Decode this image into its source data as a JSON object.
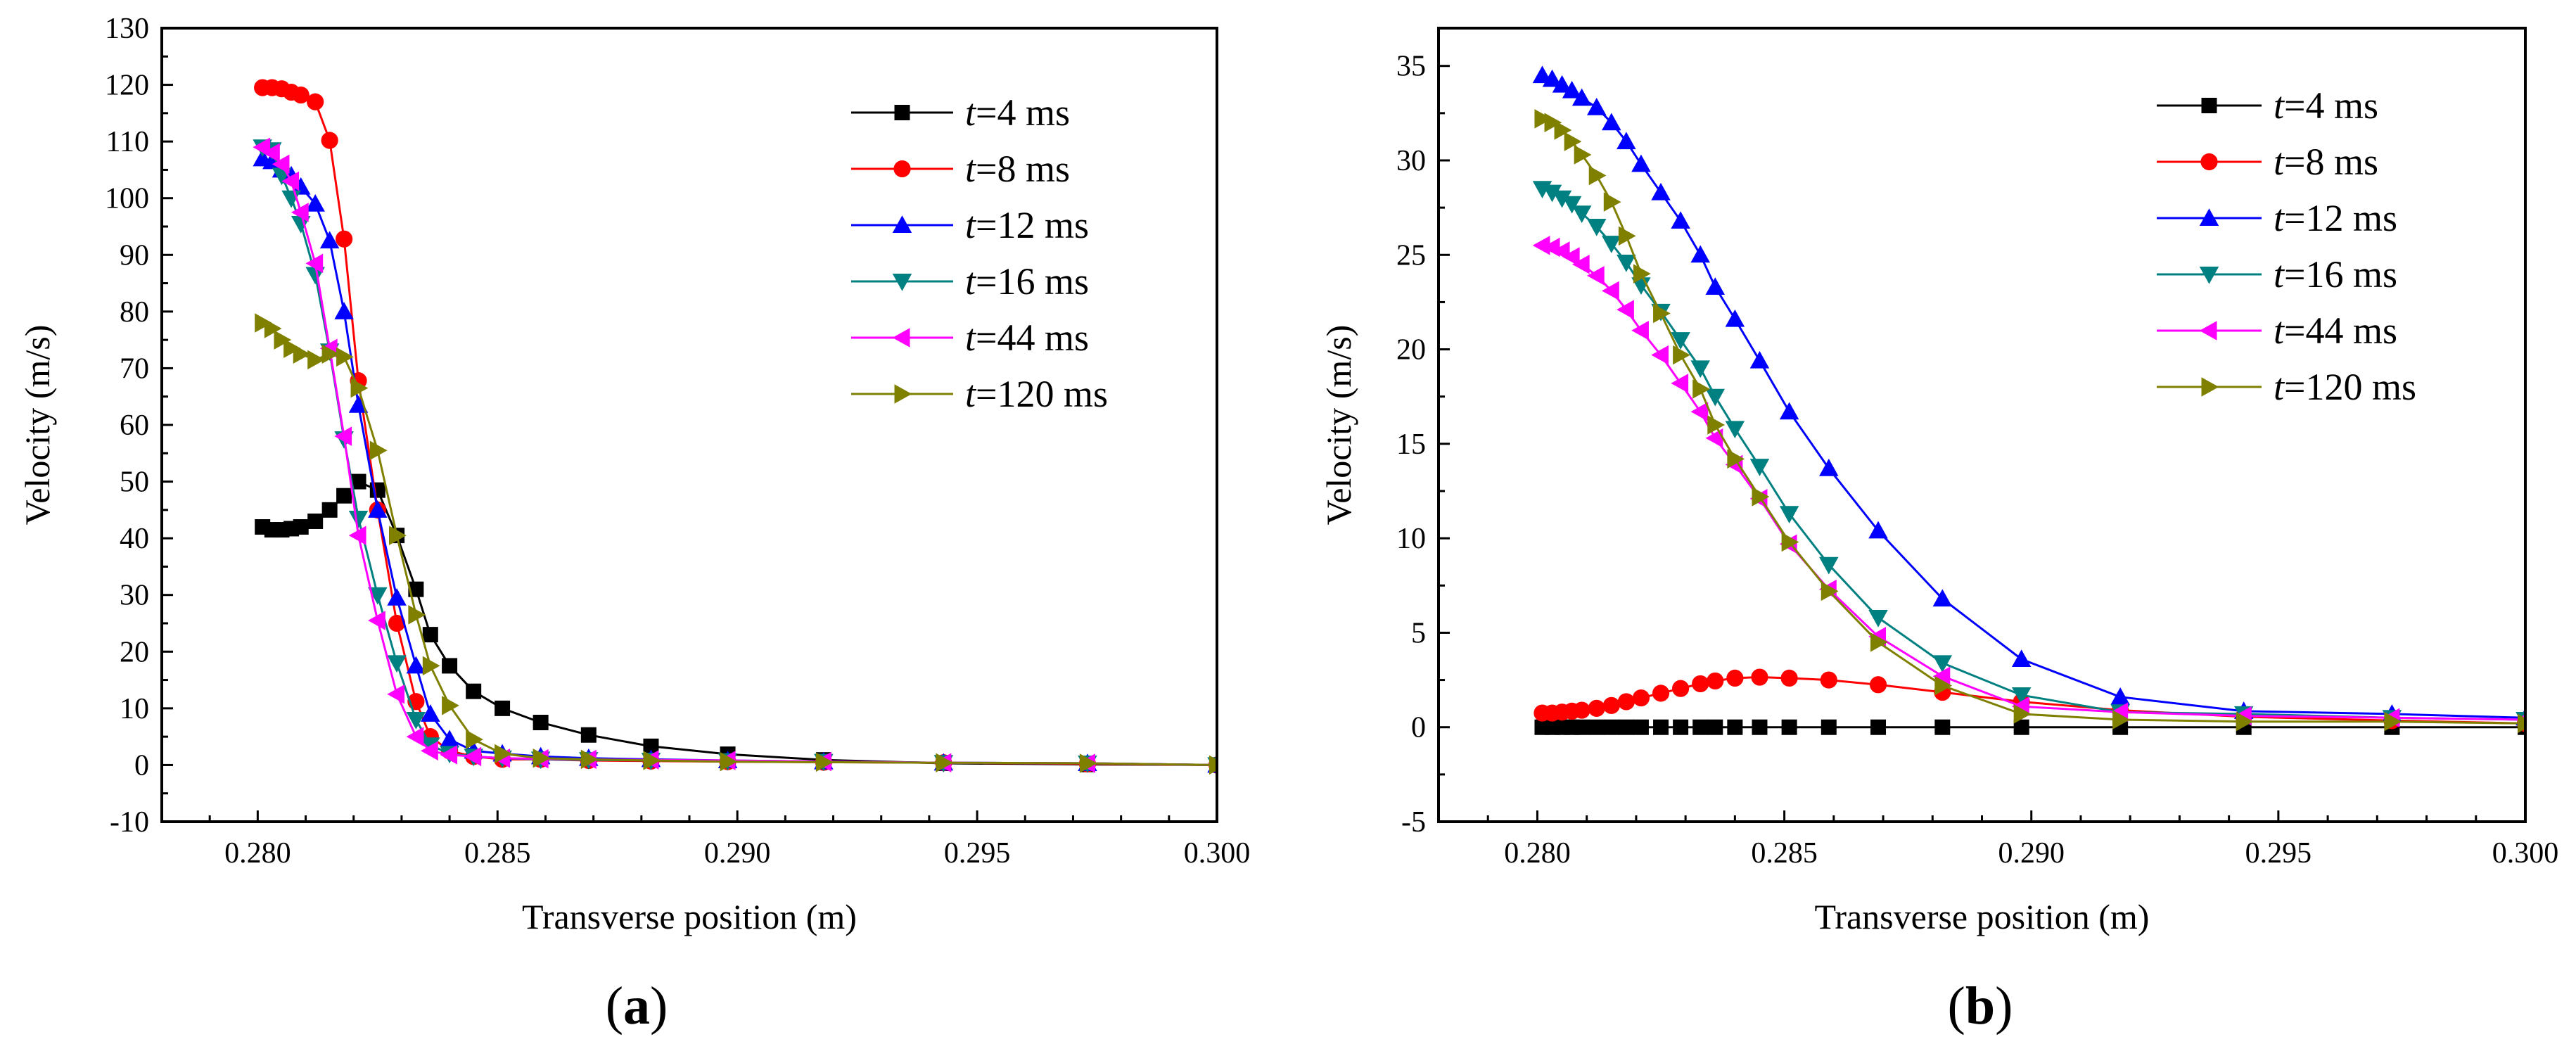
{
  "chart_data": [
    {
      "type": "line",
      "panel_label": "(a)",
      "panel_letter": "a",
      "xlabel": "Transverse position  (m)",
      "ylabel": "Velocity  (m/s)",
      "xlim": [
        0.278,
        0.3
      ],
      "ylim": [
        -10,
        130
      ],
      "xticks": [
        0.28,
        0.285,
        0.29,
        0.295,
        0.3
      ],
      "xtick_labels": [
        "0.280",
        "0.285",
        "0.290",
        "0.295",
        "0.300"
      ],
      "yticks": [
        -10,
        0,
        10,
        20,
        30,
        40,
        50,
        60,
        70,
        80,
        90,
        100,
        110,
        120,
        130
      ],
      "ytick_labels": [
        "-10",
        "0",
        "10",
        "20",
        "30",
        "40",
        "50",
        "60",
        "70",
        "80",
        "90",
        "100",
        "110",
        "120",
        "130"
      ],
      "legend_position": "top-right",
      "series": [
        {
          "name": "t=4 ms",
          "t_symbol": "t",
          "t_value": "=4 ms",
          "color": "#000000",
          "marker": "square",
          "x": [
            0.2801,
            0.2803,
            0.2805,
            0.2807,
            0.2809,
            0.2812,
            0.2815,
            0.2818,
            0.2821,
            0.2825,
            0.2829,
            0.2833,
            0.2836,
            0.284,
            0.2845,
            0.2851,
            0.2859,
            0.2869,
            0.2882,
            0.2898,
            0.2918,
            0.2943,
            0.2973,
            0.3
          ],
          "y": [
            42,
            41.5,
            41.5,
            41.7,
            42,
            43,
            45,
            47.5,
            50,
            48.5,
            40.5,
            31,
            23,
            17.5,
            13,
            10,
            7.5,
            5.3,
            3.3,
            1.9,
            0.9,
            0.3,
            0.1,
            0
          ]
        },
        {
          "name": "t=8 ms",
          "t_symbol": "t",
          "t_value": "=8 ms",
          "color": "#ff0000",
          "marker": "circle",
          "x": [
            0.2801,
            0.2803,
            0.2805,
            0.2807,
            0.2809,
            0.2812,
            0.2815,
            0.2818,
            0.2821,
            0.2825,
            0.2829,
            0.2833,
            0.2836,
            0.284,
            0.2845,
            0.2851,
            0.2859,
            0.2869,
            0.2882,
            0.2898,
            0.2918,
            0.2943,
            0.2973,
            0.3
          ],
          "y": [
            119.5,
            119.5,
            119.3,
            118.7,
            118.2,
            117,
            110.2,
            92.8,
            67.8,
            45,
            25,
            11.2,
            5,
            2.5,
            1.5,
            1,
            1,
            0.8,
            0.7,
            0.6,
            0.5,
            0.4,
            0.2,
            0
          ]
        },
        {
          "name": "t=12 ms",
          "t_symbol": "t",
          "t_value": "=12 ms",
          "color": "#0000ff",
          "marker": "triangle-up",
          "x": [
            0.2801,
            0.2803,
            0.2805,
            0.2807,
            0.2809,
            0.2812,
            0.2815,
            0.2818,
            0.2821,
            0.2825,
            0.2829,
            0.2833,
            0.2836,
            0.284,
            0.2845,
            0.2851,
            0.2859,
            0.2869,
            0.2882,
            0.2898,
            0.2918,
            0.2943,
            0.2973,
            0.3
          ],
          "y": [
            107,
            106.5,
            105,
            104,
            102,
            99,
            92.5,
            80,
            63.5,
            45,
            29.5,
            17.5,
            9,
            4.5,
            2.5,
            2,
            1.5,
            1.2,
            1,
            0.8,
            0.6,
            0.4,
            0.3,
            0
          ]
        },
        {
          "name": "t=16 ms",
          "t_symbol": "t",
          "t_value": "=16 ms",
          "color": "#008080",
          "marker": "triangle-down",
          "x": [
            0.2801,
            0.2803,
            0.2805,
            0.2807,
            0.2809,
            0.2812,
            0.2815,
            0.2818,
            0.2821,
            0.2825,
            0.2829,
            0.2833,
            0.2836,
            0.284,
            0.2845,
            0.2851,
            0.2859,
            0.2869,
            0.2882,
            0.2898,
            0.2918,
            0.2943,
            0.2973,
            0.3
          ],
          "y": [
            109,
            108.5,
            104,
            100,
            95.5,
            86.5,
            73,
            57.5,
            43.5,
            30,
            18,
            8,
            3.5,
            2,
            1.5,
            1.2,
            1,
            0.9,
            0.8,
            0.7,
            0.6,
            0.4,
            0.3,
            0
          ]
        },
        {
          "name": "t=44 ms",
          "t_symbol": "t",
          "t_value": "=44 ms",
          "color": "#ff00ff",
          "marker": "triangle-left",
          "x": [
            0.2801,
            0.2803,
            0.2805,
            0.2807,
            0.2809,
            0.2812,
            0.2815,
            0.2818,
            0.2821,
            0.2825,
            0.2829,
            0.2833,
            0.2836,
            0.284,
            0.2845,
            0.2851,
            0.2859,
            0.2869,
            0.2882,
            0.2898,
            0.2918,
            0.2943,
            0.2973,
            0.3
          ],
          "y": [
            109,
            108,
            106,
            103,
            97.5,
            88.5,
            73.5,
            58,
            40.5,
            25.5,
            12.5,
            5,
            2.5,
            1.8,
            1.5,
            1.2,
            1.1,
            1,
            0.9,
            0.8,
            0.6,
            0.4,
            0.3,
            0
          ]
        },
        {
          "name": "t=120 ms",
          "t_symbol": "t",
          "t_value": "=120 ms",
          "color": "#808000",
          "marker": "triangle-right",
          "x": [
            0.2801,
            0.2803,
            0.2805,
            0.2807,
            0.2809,
            0.2812,
            0.2815,
            0.2818,
            0.2821,
            0.2825,
            0.2829,
            0.2833,
            0.2836,
            0.284,
            0.2845,
            0.2851,
            0.2859,
            0.2869,
            0.2882,
            0.2898,
            0.2918,
            0.2943,
            0.2973,
            0.3
          ],
          "y": [
            78,
            77,
            75,
            73.5,
            72.5,
            71.5,
            72.5,
            72,
            66.5,
            55.5,
            40.5,
            26.5,
            17.5,
            10.5,
            4.5,
            2,
            1.2,
            1,
            0.8,
            0.6,
            0.5,
            0.4,
            0.3,
            0
          ]
        }
      ]
    },
    {
      "type": "line",
      "panel_label": "(b)",
      "panel_letter": "b",
      "xlabel": "Transverse position  (m)",
      "ylabel": "Velocity  (m/s)",
      "xlim": [
        0.278,
        0.3
      ],
      "ylim": [
        -5,
        37
      ],
      "xticks": [
        0.28,
        0.285,
        0.29,
        0.295,
        0.3
      ],
      "xtick_labels": [
        "0.280",
        "0.285",
        "0.290",
        "0.295",
        "0.300"
      ],
      "yticks": [
        -5,
        0,
        5,
        10,
        15,
        20,
        25,
        30,
        35
      ],
      "ytick_labels": [
        "-5",
        "0",
        "5",
        "10",
        "15",
        "20",
        "25",
        "30",
        "35"
      ],
      "legend_position": "top-right",
      "series": [
        {
          "name": "t=4 ms",
          "t_symbol": "t",
          "t_value": "=4 ms",
          "color": "#000000",
          "marker": "square",
          "x": [
            0.2801,
            0.2803,
            0.2805,
            0.2807,
            0.2809,
            0.2812,
            0.2815,
            0.2818,
            0.2821,
            0.2825,
            0.2829,
            0.2833,
            0.2836,
            0.284,
            0.2845,
            0.2851,
            0.2859,
            0.2869,
            0.2882,
            0.2898,
            0.2918,
            0.2943,
            0.2973,
            0.3
          ],
          "y": [
            0,
            0,
            0,
            0,
            0,
            0,
            0,
            0,
            0,
            0,
            0,
            0,
            0,
            0,
            0,
            0,
            0,
            0,
            0,
            0,
            0,
            0,
            0,
            0
          ]
        },
        {
          "name": "t=8 ms",
          "t_symbol": "t",
          "t_value": "=8 ms",
          "color": "#ff0000",
          "marker": "circle",
          "x": [
            0.2801,
            0.2803,
            0.2805,
            0.2807,
            0.2809,
            0.2812,
            0.2815,
            0.2818,
            0.2821,
            0.2825,
            0.2829,
            0.2833,
            0.2836,
            0.284,
            0.2845,
            0.2851,
            0.2859,
            0.2869,
            0.2882,
            0.2898,
            0.2918,
            0.2943,
            0.2973,
            0.3
          ],
          "y": [
            0.75,
            0.75,
            0.8,
            0.85,
            0.9,
            1,
            1.15,
            1.35,
            1.55,
            1.8,
            2.05,
            2.3,
            2.45,
            2.6,
            2.65,
            2.6,
            2.5,
            2.25,
            1.85,
            1.35,
            0.9,
            0.55,
            0.35,
            0.2
          ]
        },
        {
          "name": "t=12 ms",
          "t_symbol": "t",
          "t_value": "=12 ms",
          "color": "#0000ff",
          "marker": "triangle-up",
          "x": [
            0.2801,
            0.2803,
            0.2805,
            0.2807,
            0.2809,
            0.2812,
            0.2815,
            0.2818,
            0.2821,
            0.2825,
            0.2829,
            0.2833,
            0.2836,
            0.284,
            0.2845,
            0.2851,
            0.2859,
            0.2869,
            0.2882,
            0.2898,
            0.2918,
            0.2943,
            0.2973,
            0.3
          ],
          "y": [
            34.5,
            34.3,
            34,
            33.7,
            33.3,
            32.8,
            32,
            31,
            29.8,
            28.3,
            26.8,
            25,
            23.3,
            21.6,
            19.4,
            16.7,
            13.7,
            10.4,
            6.8,
            3.6,
            1.6,
            0.85,
            0.7,
            0.5
          ]
        },
        {
          "name": "t=16 ms",
          "t_symbol": "t",
          "t_value": "=16 ms",
          "color": "#008080",
          "marker": "triangle-down",
          "x": [
            0.2801,
            0.2803,
            0.2805,
            0.2807,
            0.2809,
            0.2812,
            0.2815,
            0.2818,
            0.2821,
            0.2825,
            0.2829,
            0.2833,
            0.2836,
            0.284,
            0.2845,
            0.2851,
            0.2859,
            0.2869,
            0.2882,
            0.2898,
            0.2918,
            0.2943,
            0.2973,
            0.3
          ],
          "y": [
            28.5,
            28.3,
            28,
            27.7,
            27.2,
            26.5,
            25.6,
            24.6,
            23.4,
            22,
            20.5,
            19,
            17.5,
            15.8,
            13.8,
            11.3,
            8.6,
            5.8,
            3.4,
            1.7,
            0.8,
            0.7,
            0.5,
            0.4
          ]
        },
        {
          "name": "t=44 ms",
          "t_symbol": "t",
          "t_value": "=44 ms",
          "color": "#ff00ff",
          "marker": "triangle-left",
          "x": [
            0.2801,
            0.2803,
            0.2805,
            0.2807,
            0.2809,
            0.2812,
            0.2815,
            0.2818,
            0.2821,
            0.2825,
            0.2829,
            0.2833,
            0.2836,
            0.284,
            0.2845,
            0.2851,
            0.2859,
            0.2869,
            0.2882,
            0.2898,
            0.2918,
            0.2943,
            0.2973,
            0.3
          ],
          "y": [
            25.5,
            25.4,
            25.2,
            24.9,
            24.5,
            23.9,
            23.1,
            22.1,
            21,
            19.7,
            18.2,
            16.7,
            15.3,
            13.9,
            12.1,
            9.7,
            7.3,
            4.8,
            2.7,
            1.1,
            0.8,
            0.6,
            0.5,
            0.4
          ]
        },
        {
          "name": "t=120 ms",
          "t_symbol": "t",
          "t_value": "=120 ms",
          "color": "#808000",
          "marker": "triangle-right",
          "x": [
            0.2801,
            0.2803,
            0.2805,
            0.2807,
            0.2809,
            0.2812,
            0.2815,
            0.2818,
            0.2821,
            0.2825,
            0.2829,
            0.2833,
            0.2836,
            0.284,
            0.2845,
            0.2851,
            0.2859,
            0.2869,
            0.2882,
            0.2898,
            0.2918,
            0.2943,
            0.2973,
            0.3
          ],
          "y": [
            32.2,
            32,
            31.6,
            31,
            30.3,
            29.2,
            27.8,
            26,
            24,
            21.9,
            19.7,
            17.9,
            16,
            14.2,
            12.2,
            9.8,
            7.2,
            4.5,
            2.2,
            0.7,
            0.4,
            0.3,
            0.3,
            0.2
          ]
        }
      ]
    }
  ]
}
